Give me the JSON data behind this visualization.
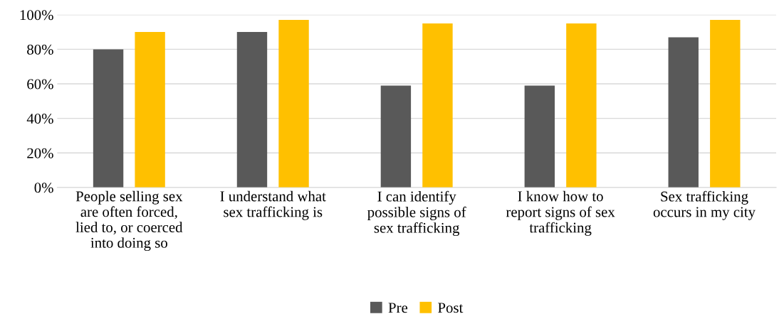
{
  "chart_data": {
    "type": "bar",
    "categories": [
      "People selling sex\nare often forced,\nlied to, or coerced\ninto doing so",
      "I understand what\nsex trafficking is",
      "I can identify\npossible signs of\nsex trafficking",
      "I know how to\nreport signs of sex\ntrafficking",
      "Sex trafficking\noccurs in my city"
    ],
    "series": [
      {
        "name": "Pre",
        "color": "#595959",
        "values": [
          80,
          90,
          59,
          59,
          87
        ]
      },
      {
        "name": "Post",
        "color": "#ffc000",
        "values": [
          90,
          97,
          95,
          95,
          97
        ]
      }
    ],
    "ylim": [
      0,
      100
    ],
    "yticks": [
      {
        "value": 0,
        "label": "0%"
      },
      {
        "value": 20,
        "label": "20%"
      },
      {
        "value": 40,
        "label": "40%"
      },
      {
        "value": 60,
        "label": "60%"
      },
      {
        "value": 80,
        "label": "80%"
      },
      {
        "value": 100,
        "label": "100%"
      }
    ],
    "grid": "y",
    "legend": "bottom"
  }
}
